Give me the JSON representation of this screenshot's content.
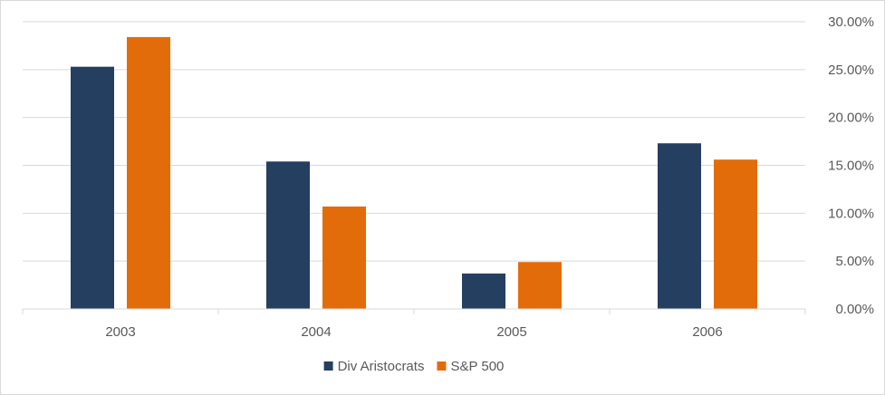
{
  "chart_data": {
    "type": "bar",
    "title": "",
    "xlabel": "",
    "ylabel": "",
    "categories": [
      "2003",
      "2004",
      "2005",
      "2006"
    ],
    "series": [
      {
        "name": "Div Aristocrats",
        "color": "#243f60",
        "values": [
          25.3,
          15.4,
          3.7,
          17.3
        ]
      },
      {
        "name": "S&P 500",
        "color": "#e36c0a",
        "values": [
          28.4,
          10.7,
          4.9,
          15.6
        ]
      }
    ],
    "ylim": [
      0,
      30
    ],
    "yticks": [
      "0.00%",
      "5.00%",
      "10.00%",
      "15.00%",
      "20.00%",
      "25.00%",
      "30.00%"
    ],
    "y_axis_side": "right",
    "grid": true,
    "legend_position": "bottom"
  }
}
